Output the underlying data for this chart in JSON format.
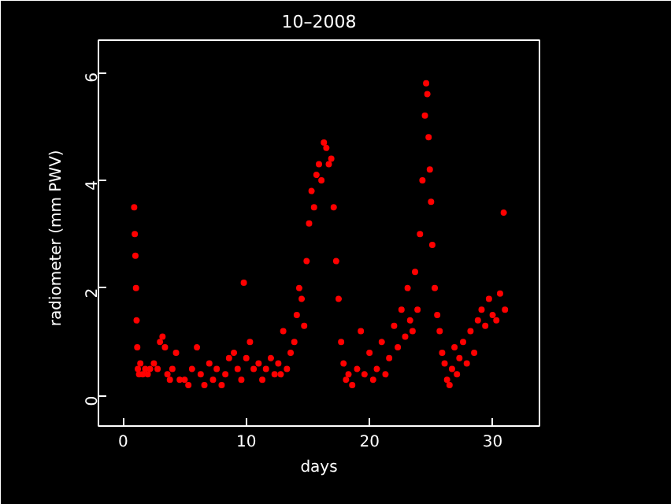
{
  "chart_data": {
    "type": "scatter",
    "title": "10–2008",
    "xlabel": "days",
    "ylabel": "radiometer  (mm  PWV)",
    "x": [
      0.9,
      0.95,
      1.0,
      1.05,
      1.1,
      1.15,
      1.2,
      1.3,
      1.4,
      1.6,
      1.8,
      2.0,
      2.2,
      2.5,
      2.8,
      3.0,
      3.2,
      3.4,
      3.6,
      3.8,
      4.0,
      4.3,
      4.6,
      5.0,
      5.3,
      5.6,
      6.0,
      6.3,
      6.6,
      7.0,
      7.3,
      7.6,
      8.0,
      8.3,
      8.6,
      9.0,
      9.3,
      9.6,
      9.8,
      10.0,
      10.3,
      10.6,
      11.0,
      11.3,
      11.6,
      12.0,
      12.3,
      12.6,
      12.8,
      13.0,
      13.3,
      13.6,
      13.9,
      14.1,
      14.3,
      14.5,
      14.7,
      14.9,
      15.1,
      15.3,
      15.5,
      15.7,
      15.9,
      16.1,
      16.3,
      16.5,
      16.7,
      16.9,
      17.1,
      17.3,
      17.5,
      17.7,
      17.9,
      18.1,
      18.3,
      18.6,
      19.0,
      19.3,
      19.6,
      20.0,
      20.3,
      20.6,
      21.0,
      21.3,
      21.6,
      22.0,
      22.3,
      22.6,
      22.9,
      23.1,
      23.3,
      23.5,
      23.7,
      23.9,
      24.1,
      24.3,
      24.5,
      24.6,
      24.7,
      24.8,
      24.9,
      25.0,
      25.1,
      25.3,
      25.5,
      25.7,
      25.9,
      26.1,
      26.3,
      26.5,
      26.7,
      26.9,
      27.1,
      27.3,
      27.6,
      27.9,
      28.2,
      28.5,
      28.8,
      29.1,
      29.4,
      29.7,
      30.0,
      30.3,
      30.6,
      30.9,
      31.0
    ],
    "values": [
      3.5,
      3.0,
      2.6,
      2.0,
      1.4,
      0.9,
      0.5,
      0.4,
      0.6,
      0.4,
      0.5,
      0.4,
      0.5,
      0.6,
      0.5,
      1.0,
      1.1,
      0.9,
      0.4,
      0.3,
      0.5,
      0.8,
      0.3,
      0.3,
      0.2,
      0.5,
      0.9,
      0.4,
      0.2,
      0.6,
      0.3,
      0.5,
      0.2,
      0.4,
      0.7,
      0.8,
      0.5,
      0.3,
      2.1,
      0.7,
      1.0,
      0.5,
      0.6,
      0.3,
      0.5,
      0.7,
      0.4,
      0.6,
      0.4,
      1.2,
      0.5,
      0.8,
      1.0,
      1.5,
      2.0,
      1.8,
      1.3,
      2.5,
      3.2,
      3.8,
      3.5,
      4.1,
      4.3,
      4.0,
      4.7,
      4.6,
      4.3,
      4.4,
      3.5,
      2.5,
      1.8,
      1.0,
      0.6,
      0.3,
      0.4,
      0.2,
      0.5,
      1.2,
      0.4,
      0.8,
      0.3,
      0.5,
      1.0,
      0.4,
      0.7,
      1.3,
      0.9,
      1.6,
      1.1,
      2.0,
      1.4,
      1.2,
      2.3,
      1.6,
      3.0,
      4.0,
      5.2,
      5.8,
      5.6,
      4.8,
      4.2,
      3.6,
      2.8,
      2.0,
      1.5,
      1.2,
      0.8,
      0.6,
      0.3,
      0.2,
      0.5,
      0.9,
      0.4,
      0.7,
      1.0,
      0.6,
      1.2,
      0.8,
      1.4,
      1.6,
      1.3,
      1.8,
      1.5,
      1.4,
      1.9,
      3.4,
      1.6
    ],
    "color": "#ff0000",
    "marker": "circle",
    "xlim": [
      -2.0,
      33.8
    ],
    "ylim": [
      -0.56,
      6.6
    ],
    "xticks": [
      0,
      10,
      20,
      30
    ],
    "yticks": [
      0,
      2,
      4,
      6
    ],
    "grid": false
  }
}
